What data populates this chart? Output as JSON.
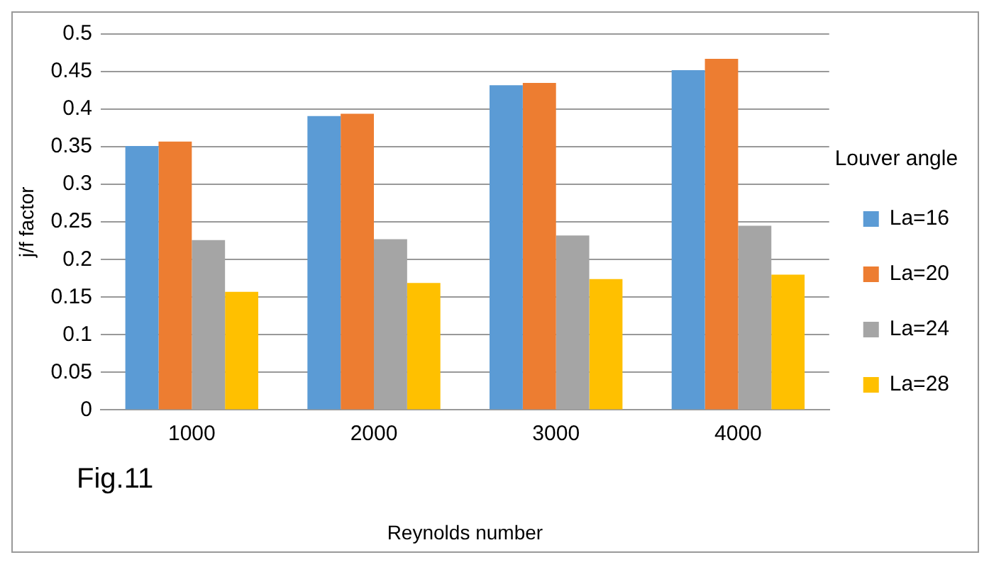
{
  "chart_data": {
    "type": "bar",
    "xlabel": "Reynolds number",
    "ylabel": "j/f factor",
    "legend_title": "Louver angle",
    "categories": [
      "1000",
      "2000",
      "3000",
      "4000"
    ],
    "series": [
      {
        "name": "La=16",
        "color": "#5b9bd5",
        "values": [
          0.351,
          0.391,
          0.432,
          0.452
        ]
      },
      {
        "name": "La=20",
        "color": "#ed7d31",
        "values": [
          0.357,
          0.394,
          0.435,
          0.467
        ]
      },
      {
        "name": "La=24",
        "color": "#a5a5a5",
        "values": [
          0.226,
          0.227,
          0.232,
          0.245
        ]
      },
      {
        "name": "La=28",
        "color": "#ffc000",
        "values": [
          0.157,
          0.169,
          0.174,
          0.18
        ]
      }
    ],
    "ylim": [
      0,
      0.5
    ],
    "yticks": [
      0,
      0.05,
      0.1,
      0.15,
      0.2,
      0.25,
      0.3,
      0.35,
      0.4,
      0.45,
      0.5
    ],
    "grid": "y",
    "legend": "right",
    "annotations": [
      "Fig.11"
    ]
  }
}
